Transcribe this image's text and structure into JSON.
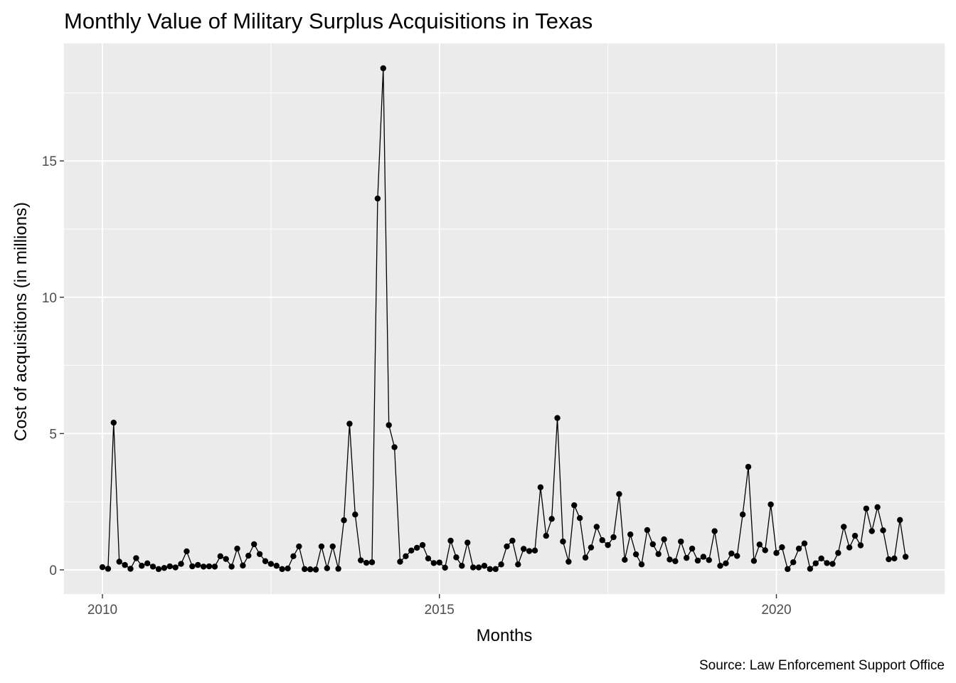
{
  "chart_data": {
    "type": "line",
    "title": "Monthly Value of Military Surplus Acquisitions in Texas",
    "xlabel": "Months",
    "ylabel": "Cost of acquisitions (in millions)",
    "caption": "Source: Law Enforcement Support Office",
    "x_start": "2010-01",
    "x_ticks": [
      {
        "year": 2010,
        "label": "2010"
      },
      {
        "year": 2015,
        "label": "2015"
      },
      {
        "year": 2020,
        "label": "2020"
      }
    ],
    "y_ticks": [
      {
        "value": 0,
        "label": "0"
      },
      {
        "value": 5,
        "label": "5"
      },
      {
        "value": 10,
        "label": "10"
      },
      {
        "value": 15,
        "label": "15"
      }
    ],
    "ylim": [
      -0.9,
      19.3
    ],
    "xlim": [
      "2009-07",
      "2022-06"
    ],
    "grid": true,
    "legend": "none",
    "colors": {
      "panel": "#ebebeb",
      "grid": "#ffffff",
      "line": "#000000",
      "point": "#000000"
    },
    "series": [
      {
        "values": [
          0.1,
          0.04,
          5.4,
          0.3,
          0.18,
          0.04,
          0.43,
          0.15,
          0.24,
          0.12,
          0.03,
          0.07,
          0.13,
          0.09,
          0.22,
          0.68,
          0.13,
          0.18,
          0.12,
          0.13,
          0.12,
          0.5,
          0.4,
          0.12,
          0.78,
          0.16,
          0.52,
          0.94,
          0.58,
          0.32,
          0.22,
          0.15,
          0.03,
          0.05,
          0.5,
          0.86,
          0.03,
          0.02,
          0.01,
          0.86,
          0.06,
          0.86,
          0.04,
          1.82,
          5.36,
          2.03,
          0.35,
          0.26,
          0.28,
          13.62,
          18.4,
          5.31,
          4.5,
          0.3,
          0.5,
          0.71,
          0.81,
          0.91,
          0.42,
          0.25,
          0.27,
          0.08,
          1.07,
          0.46,
          0.15,
          1.0,
          0.09,
          0.09,
          0.15,
          0.03,
          0.03,
          0.2,
          0.86,
          1.07,
          0.2,
          0.77,
          0.69,
          0.71,
          3.03,
          1.25,
          1.87,
          5.57,
          1.04,
          0.3,
          2.37,
          1.9,
          0.45,
          0.82,
          1.58,
          1.09,
          0.91,
          1.2,
          2.78,
          0.37,
          1.3,
          0.57,
          0.2,
          1.46,
          0.94,
          0.58,
          1.12,
          0.38,
          0.32,
          1.04,
          0.44,
          0.78,
          0.34,
          0.48,
          0.36,
          1.42,
          0.15,
          0.24,
          0.6,
          0.51,
          2.03,
          3.78,
          0.33,
          0.93,
          0.72,
          2.4,
          0.62,
          0.83,
          0.03,
          0.28,
          0.78,
          0.97,
          0.04,
          0.24,
          0.42,
          0.25,
          0.22,
          0.62,
          1.58,
          0.82,
          1.25,
          0.9,
          2.25,
          1.42,
          2.3,
          1.45,
          0.39,
          0.42,
          1.83,
          0.48
        ]
      }
    ]
  }
}
